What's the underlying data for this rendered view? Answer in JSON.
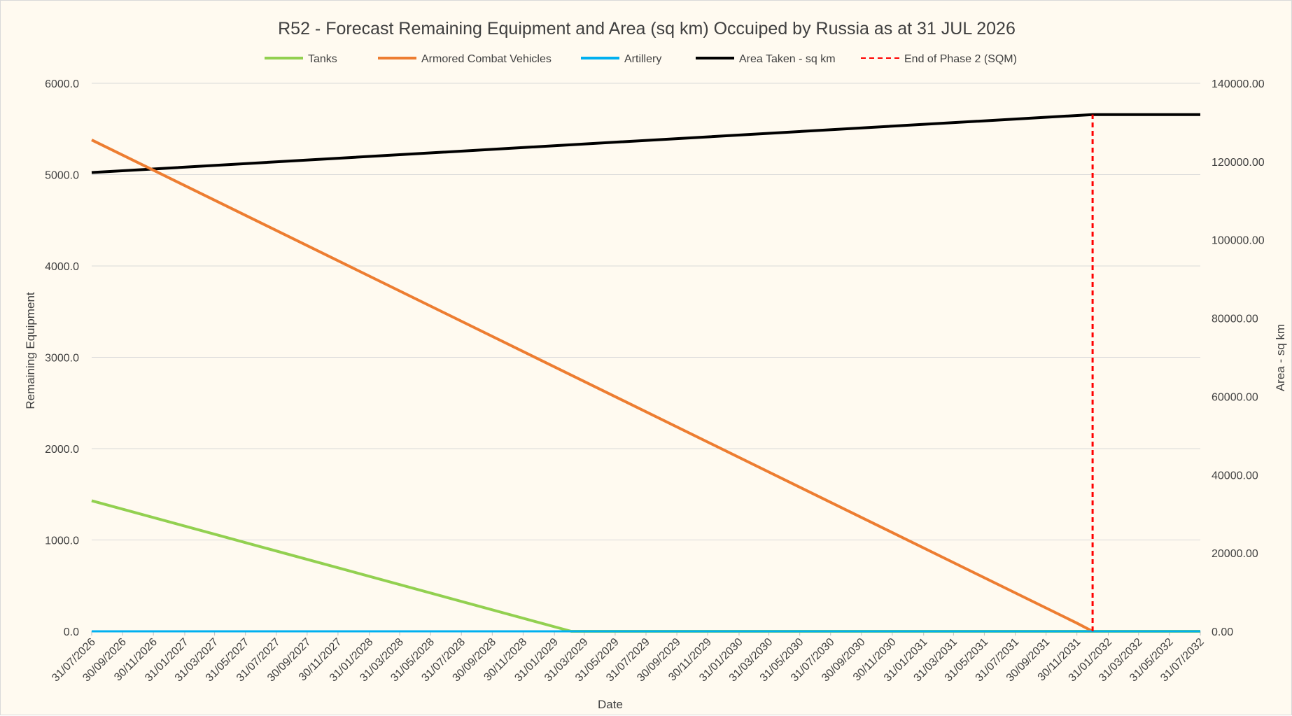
{
  "chart_data": {
    "type": "line",
    "title": "R52 - Forecast Remaining Equipment and Area (sq km) Occuiped by Russia as at 31 JUL 2026",
    "xlabel": "Date",
    "ylabel": "Remaining Equipment",
    "y2label": "Area - sq km",
    "ylim": [
      0,
      6000
    ],
    "y2lim": [
      0,
      140000
    ],
    "yticks": [
      "0.0",
      "1000.0",
      "2000.0",
      "3000.0",
      "4000.0",
      "5000.0",
      "6000.0"
    ],
    "y2ticks": [
      "0.00",
      "20000.00",
      "40000.00",
      "60000.00",
      "80000.00",
      "100000.00",
      "120000.00",
      "140000.00"
    ],
    "x_categories": [
      "31/07/2026",
      "30/09/2026",
      "30/11/2026",
      "31/01/2027",
      "31/03/2027",
      "31/05/2027",
      "31/07/2027",
      "30/09/2027",
      "30/11/2027",
      "31/01/2028",
      "31/03/2028",
      "31/05/2028",
      "31/07/2028",
      "30/09/2028",
      "30/11/2028",
      "31/01/2029",
      "31/03/2029",
      "31/05/2029",
      "31/07/2029",
      "30/09/2029",
      "30/11/2029",
      "31/01/2030",
      "31/03/2030",
      "31/05/2030",
      "31/07/2030",
      "30/09/2030",
      "30/11/2030",
      "31/01/2031",
      "31/03/2031",
      "31/05/2031",
      "31/07/2031",
      "30/09/2031",
      "30/11/2031",
      "31/01/2032",
      "31/03/2032",
      "31/05/2032",
      "31/07/2032"
    ],
    "grid": true,
    "legend_position": "top",
    "series": [
      {
        "name": "Tanks",
        "axis": "left",
        "color": "#92d050",
        "style": "solid",
        "points": [
          {
            "x": "31/07/2026",
            "y": 1430
          },
          {
            "x": "31/01/2029",
            "y": 50
          },
          {
            "x": "05/03/2029",
            "y": 0
          },
          {
            "x": "31/07/2032",
            "y": 0
          }
        ]
      },
      {
        "name": "Armored Combat Vehicles",
        "axis": "left",
        "color": "#ed7d31",
        "style": "solid",
        "points": [
          {
            "x": "31/07/2026",
            "y": 5380
          },
          {
            "x": "30/11/2031",
            "y": 90
          },
          {
            "x": "31/12/2031",
            "y": 0
          }
        ]
      },
      {
        "name": "Artillery",
        "axis": "left",
        "color": "#00b0f0",
        "style": "solid",
        "points": [
          {
            "x": "31/07/2026",
            "y": 0
          },
          {
            "x": "31/07/2032",
            "y": 0
          }
        ]
      },
      {
        "name": "Area Taken - sq km",
        "axis": "right",
        "color": "#000000",
        "style": "solid",
        "points": [
          {
            "x": "31/07/2026",
            "y": 117200
          },
          {
            "x": "31/12/2031",
            "y": 132000
          },
          {
            "x": "31/07/2032",
            "y": 132000
          }
        ]
      },
      {
        "name": "End of Phase 2 (SQM)",
        "axis": "right",
        "color": "#ff0000",
        "style": "dashed",
        "points": [
          {
            "x": "31/12/2031",
            "y": 0
          },
          {
            "x": "31/12/2031",
            "y": 132000
          }
        ]
      }
    ]
  }
}
